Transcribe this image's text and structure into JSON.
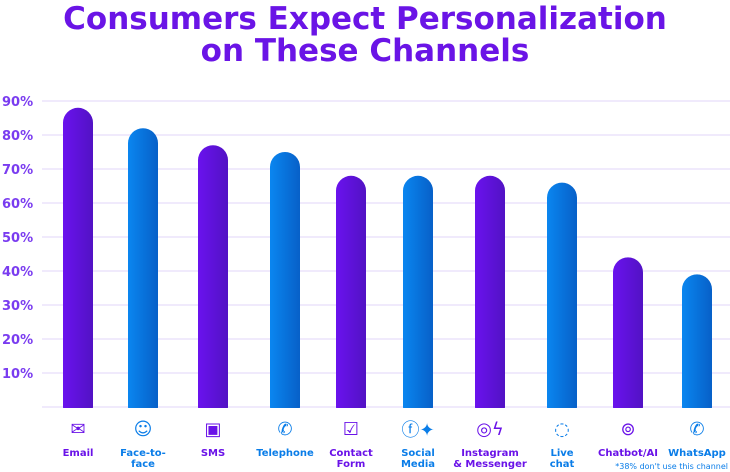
{
  "chart_data": {
    "type": "bar",
    "title": "Consumers Expect Personalization on These Channels",
    "title_lines": [
      "Consumers Expect Personalization",
      "on These Channels"
    ],
    "categories": [
      "Email",
      "Face-to-face",
      "SMS",
      "Telephone",
      "Contact Form",
      "Social Media",
      "Instagram & Messenger",
      "Live chat",
      "Chatbot/AI",
      "WhatsApp"
    ],
    "category_lines": [
      [
        "Email"
      ],
      [
        "Face-to-",
        "face"
      ],
      [
        "SMS"
      ],
      [
        "Telephone"
      ],
      [
        "Contact",
        "Form"
      ],
      [
        "Social",
        "Media"
      ],
      [
        "Instagram",
        "& Messenger"
      ],
      [
        "Live",
        "chat"
      ],
      [
        "Chatbot/AI"
      ],
      [
        "WhatsApp"
      ]
    ],
    "icons": [
      "envelope-icon",
      "smiley-face-icon",
      "sms-icon",
      "phone-icon",
      "form-check-icon",
      "facebook-twitter-icon",
      "instagram-messenger-icon",
      "chat-bubble-icon",
      "robot-icon",
      "whatsapp-icon"
    ],
    "values": [
      88,
      82,
      77,
      75,
      68,
      68,
      68,
      66,
      44,
      39
    ],
    "bar_colors": [
      "#6a12e8",
      "#0a7de8",
      "#6a12e8",
      "#0a7de8",
      "#6a12e8",
      "#0a7de8",
      "#6a12e8",
      "#0a7de8",
      "#6a12e8",
      "#0a7de8"
    ],
    "yticks": [
      "10%",
      "20%",
      "30%",
      "40%",
      "50%",
      "60%",
      "70%",
      "80%",
      "90%"
    ],
    "ylim": [
      0,
      90
    ],
    "grid": true,
    "annotation": "*38% don't use this channel",
    "colors": {
      "title": "#6a14e6",
      "purple": "#6a12e8",
      "blue": "#0a7de8",
      "grid": "#ece4fb"
    }
  }
}
